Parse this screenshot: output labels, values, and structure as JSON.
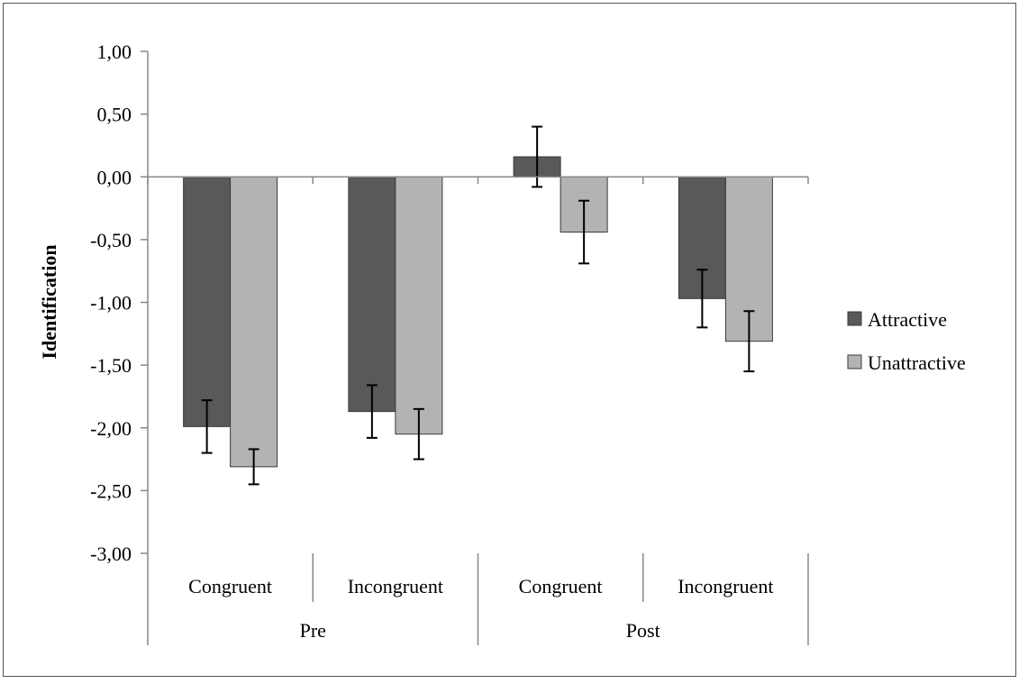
{
  "chart_data": {
    "type": "bar",
    "ylabel": "Identification",
    "ylim": [
      -3.0,
      1.0
    ],
    "y_ticks": [
      "1,00",
      "0,50",
      "0,00",
      "-0,50",
      "-1,00",
      "-1,50",
      "-2,00",
      "-2,50",
      "-3,00"
    ],
    "y_tick_values": [
      1.0,
      0.5,
      0.0,
      -0.5,
      -1.0,
      -1.5,
      -2.0,
      -2.5,
      -3.0
    ],
    "groups": [
      {
        "label": "Pre",
        "categories": [
          "Congruent",
          "Incongruent"
        ]
      },
      {
        "label": "Post",
        "categories": [
          "Congruent",
          "Incongruent"
        ]
      }
    ],
    "categories": [
      "Congruent",
      "Incongruent",
      "Congruent",
      "Incongruent"
    ],
    "series": [
      {
        "name": "Attractive",
        "color": "#595959",
        "values": [
          -1.99,
          -1.87,
          0.16,
          -0.97
        ],
        "errors": [
          0.21,
          0.21,
          0.24,
          0.23
        ]
      },
      {
        "name": "Unattractive",
        "color": "#b3b3b3",
        "values": [
          -2.31,
          -2.05,
          -0.44,
          -1.31
        ],
        "errors": [
          0.14,
          0.2,
          0.25,
          0.24
        ]
      }
    ],
    "legend_position": "right",
    "grid": false
  }
}
